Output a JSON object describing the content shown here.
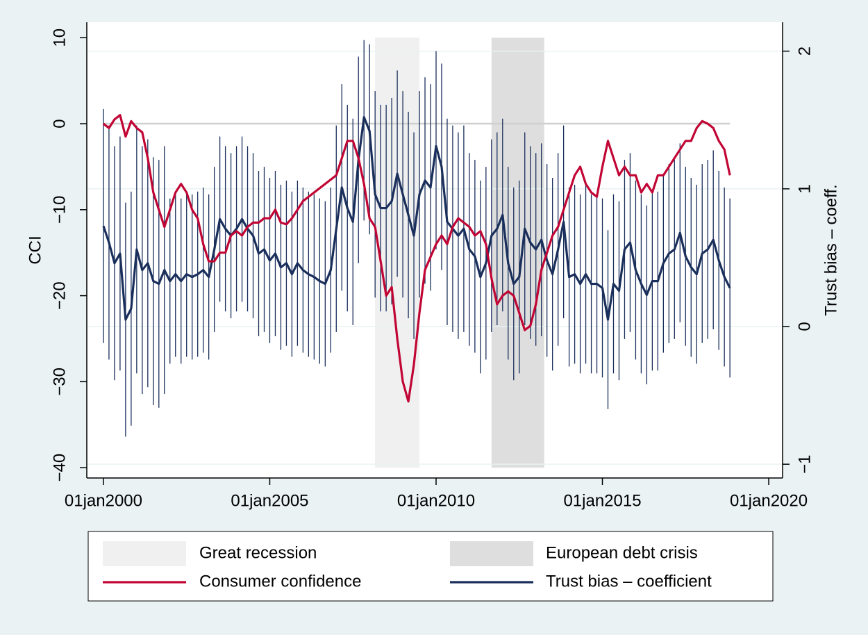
{
  "chart_data": {
    "type": "line",
    "ylabel": "CCI",
    "y2label": "Trust bias – coeff.",
    "xlim": [
      "1999-07",
      "2020-06"
    ],
    "xticks": [
      {
        "value": "2000-01",
        "label": "01jan2000"
      },
      {
        "value": "2005-01",
        "label": "01jan2005"
      },
      {
        "value": "2010-01",
        "label": "01jan2010"
      },
      {
        "value": "2015-01",
        "label": "01jan2015"
      },
      {
        "value": "2020-01",
        "label": "01jan2020"
      }
    ],
    "ylim": [
      -41.2,
      11.8
    ],
    "yticks": [
      10,
      0,
      {
        "value": -10,
        "label": "−10"
      },
      {
        "value": -20,
        "label": "−20"
      },
      {
        "value": -30,
        "label": "−30"
      },
      {
        "value": -40,
        "label": "−40"
      }
    ],
    "y2lim": [
      -1.1,
      2.21
    ],
    "y2ticks": [
      2,
      1,
      0,
      {
        "value": -1,
        "label": "−1"
      }
    ],
    "grid": "y2",
    "yline": 0,
    "shading": [
      {
        "name": "Great recession",
        "start": "2008-03",
        "end": "2009-07",
        "color": "#f0f0f0"
      },
      {
        "name": "European debt crisis",
        "start": "2011-09",
        "end": "2013-04",
        "color": "#dedede"
      }
    ],
    "x": [
      "2000-01",
      "2000-03",
      "2000-05",
      "2000-07",
      "2000-09",
      "2000-11",
      "2001-01",
      "2001-03",
      "2001-05",
      "2001-07",
      "2001-09",
      "2001-11",
      "2002-01",
      "2002-03",
      "2002-05",
      "2002-07",
      "2002-09",
      "2002-11",
      "2003-01",
      "2003-03",
      "2003-05",
      "2003-07",
      "2003-09",
      "2003-11",
      "2004-01",
      "2004-03",
      "2004-05",
      "2004-07",
      "2004-09",
      "2004-11",
      "2005-01",
      "2005-03",
      "2005-05",
      "2005-07",
      "2005-09",
      "2005-11",
      "2006-01",
      "2006-03",
      "2006-05",
      "2006-07",
      "2006-09",
      "2006-11",
      "2007-01",
      "2007-03",
      "2007-05",
      "2007-07",
      "2007-09",
      "2007-11",
      "2008-01",
      "2008-03",
      "2008-05",
      "2008-07",
      "2008-09",
      "2008-11",
      "2009-01",
      "2009-03",
      "2009-05",
      "2009-07",
      "2009-09",
      "2009-11",
      "2010-01",
      "2010-03",
      "2010-05",
      "2010-07",
      "2010-09",
      "2010-11",
      "2011-01",
      "2011-03",
      "2011-05",
      "2011-07",
      "2011-09",
      "2011-11",
      "2012-01",
      "2012-03",
      "2012-05",
      "2012-07",
      "2012-09",
      "2012-11",
      "2013-01",
      "2013-03",
      "2013-05",
      "2013-07",
      "2013-09",
      "2013-11",
      "2014-01",
      "2014-03",
      "2014-05",
      "2014-07",
      "2014-09",
      "2014-11",
      "2015-01",
      "2015-03",
      "2015-05",
      "2015-07",
      "2015-09",
      "2015-11",
      "2016-01",
      "2016-03",
      "2016-05",
      "2016-07",
      "2016-09",
      "2016-11",
      "2017-01",
      "2017-03",
      "2017-05",
      "2017-07",
      "2017-09",
      "2017-11",
      "2018-01",
      "2018-03",
      "2018-05",
      "2018-07",
      "2018-09",
      "2018-11"
    ],
    "series": [
      {
        "name": "Consumer confidence",
        "color": "#c10534",
        "values": [
          0,
          -0.5,
          0.5,
          1,
          -1.5,
          0.3,
          -0.5,
          -1,
          -4,
          -8,
          -10,
          -12,
          -10,
          -8,
          -7,
          -8,
          -10,
          -11,
          -14,
          -16,
          -16,
          -15,
          -15,
          -13,
          -12.5,
          -13,
          -12,
          -11.5,
          -11.5,
          -11,
          -11,
          -10,
          -11.5,
          -11.7,
          -11,
          -10,
          -9,
          -8.5,
          -8,
          -7.5,
          -7,
          -6.5,
          -6,
          -4,
          -2,
          -2,
          -4,
          -7,
          -11,
          -12,
          -16,
          -20,
          -19,
          -25,
          -30,
          -32.3,
          -28,
          -22,
          -17,
          -15.5,
          -14,
          -13,
          -14,
          -12,
          -11,
          -11.5,
          -12,
          -13,
          -12.5,
          -14,
          -18,
          -21,
          -20,
          -19.5,
          -20,
          -22,
          -24,
          -23.5,
          -21,
          -17,
          -15,
          -13,
          -12,
          -10,
          -8,
          -6,
          -5,
          -7,
          -8,
          -8.5,
          -5,
          -2,
          -4,
          -6,
          -5,
          -6,
          -6,
          -8,
          -7,
          -8,
          -6,
          -6,
          -5,
          -4,
          -3,
          -2,
          -2,
          -0.5,
          0.3,
          0,
          -0.5,
          -2,
          -3,
          -6
        ]
      },
      {
        "name": "Trust bias – coefficient",
        "color": "#1a2f5b",
        "axis": "y2",
        "values": [
          0.73,
          0.61,
          0.46,
          0.53,
          0.05,
          0.13,
          0.56,
          0.41,
          0.46,
          0.33,
          0.31,
          0.41,
          0.33,
          0.38,
          0.33,
          0.38,
          0.36,
          0.38,
          0.41,
          0.36,
          0.56,
          0.78,
          0.71,
          0.66,
          0.71,
          0.78,
          0.71,
          0.66,
          0.53,
          0.56,
          0.48,
          0.53,
          0.43,
          0.46,
          0.38,
          0.46,
          0.41,
          0.38,
          0.36,
          0.33,
          0.31,
          0.41,
          0.71,
          1.01,
          0.86,
          0.76,
          1.21,
          1.52,
          1.42,
          0.96,
          0.86,
          0.86,
          0.91,
          1.11,
          0.96,
          0.81,
          0.66,
          0.96,
          1.06,
          1.01,
          1.31,
          1.16,
          0.76,
          0.71,
          0.66,
          0.71,
          0.56,
          0.51,
          0.36,
          0.46,
          0.66,
          0.71,
          0.81,
          0.46,
          0.31,
          0.36,
          0.71,
          0.61,
          0.56,
          0.63,
          0.48,
          0.38,
          0.56,
          0.76,
          0.36,
          0.38,
          0.31,
          0.38,
          0.31,
          0.31,
          0.28,
          0.05,
          0.31,
          0.26,
          0.56,
          0.61,
          0.41,
          0.31,
          0.23,
          0.33,
          0.33,
          0.46,
          0.53,
          0.56,
          0.68,
          0.51,
          0.43,
          0.38,
          0.53,
          0.56,
          0.63,
          0.48,
          0.36,
          0.28
        ],
        "lower": [
          -0.12,
          -0.24,
          -0.39,
          -0.32,
          -0.8,
          -0.72,
          -0.34,
          -0.49,
          -0.44,
          -0.57,
          -0.59,
          -0.49,
          -0.27,
          -0.22,
          -0.27,
          -0.22,
          -0.24,
          -0.22,
          -0.19,
          -0.24,
          -0.04,
          0.18,
          0.11,
          0.06,
          0.11,
          0.18,
          0.11,
          0.06,
          -0.07,
          -0.04,
          -0.12,
          -0.07,
          -0.17,
          -0.14,
          -0.22,
          -0.14,
          -0.19,
          -0.22,
          -0.24,
          -0.27,
          -0.29,
          -0.19,
          -0.04,
          0.26,
          0.11,
          0.01,
          0.46,
          0.77,
          0.67,
          0.21,
          0.11,
          0.11,
          0.16,
          0.36,
          0.21,
          0.06,
          -0.09,
          0.21,
          0.31,
          0.26,
          0.56,
          0.41,
          0.01,
          -0.04,
          -0.09,
          -0.04,
          -0.14,
          -0.19,
          -0.34,
          -0.24,
          -0.04,
          0.01,
          0.11,
          -0.24,
          -0.39,
          -0.34,
          0.01,
          -0.09,
          -0.14,
          -0.07,
          -0.22,
          -0.32,
          -0.14,
          0.06,
          -0.29,
          -0.27,
          -0.34,
          -0.27,
          -0.34,
          -0.34,
          -0.37,
          -0.6,
          -0.34,
          -0.39,
          -0.09,
          -0.04,
          -0.24,
          -0.34,
          -0.42,
          -0.32,
          -0.32,
          -0.19,
          -0.12,
          -0.09,
          0.03,
          -0.14,
          -0.22,
          -0.27,
          -0.12,
          -0.09,
          -0.02,
          -0.17,
          -0.29,
          -0.37
        ],
        "upper": [
          1.58,
          1.46,
          1.31,
          1.38,
          0.9,
          0.98,
          1.46,
          1.31,
          1.36,
          1.23,
          1.21,
          1.31,
          0.93,
          0.98,
          0.93,
          0.98,
          0.96,
          0.98,
          1.01,
          0.96,
          1.16,
          1.38,
          1.31,
          1.26,
          1.31,
          1.38,
          1.31,
          1.26,
          1.13,
          1.16,
          1.08,
          1.13,
          1.03,
          1.06,
          0.98,
          1.06,
          1.01,
          0.98,
          0.96,
          0.93,
          0.91,
          1.01,
          1.46,
          1.76,
          1.61,
          1.51,
          1.96,
          2.08,
          2.05,
          1.71,
          1.61,
          1.61,
          1.66,
          1.86,
          1.71,
          1.56,
          1.41,
          1.71,
          1.81,
          1.76,
          2.0,
          1.91,
          1.51,
          1.46,
          1.41,
          1.46,
          1.26,
          1.21,
          1.06,
          1.16,
          1.36,
          1.41,
          1.51,
          1.16,
          1.01,
          1.06,
          1.41,
          1.31,
          1.26,
          1.33,
          1.18,
          1.08,
          1.26,
          1.46,
          1.01,
          1.03,
          0.96,
          1.03,
          0.96,
          0.96,
          0.93,
          0.7,
          0.96,
          0.91,
          1.21,
          1.26,
          1.06,
          0.96,
          0.88,
          0.98,
          0.98,
          1.11,
          1.18,
          1.21,
          1.33,
          1.16,
          1.08,
          1.03,
          1.18,
          1.21,
          1.28,
          1.13,
          1.01,
          0.93
        ]
      }
    ]
  }
}
